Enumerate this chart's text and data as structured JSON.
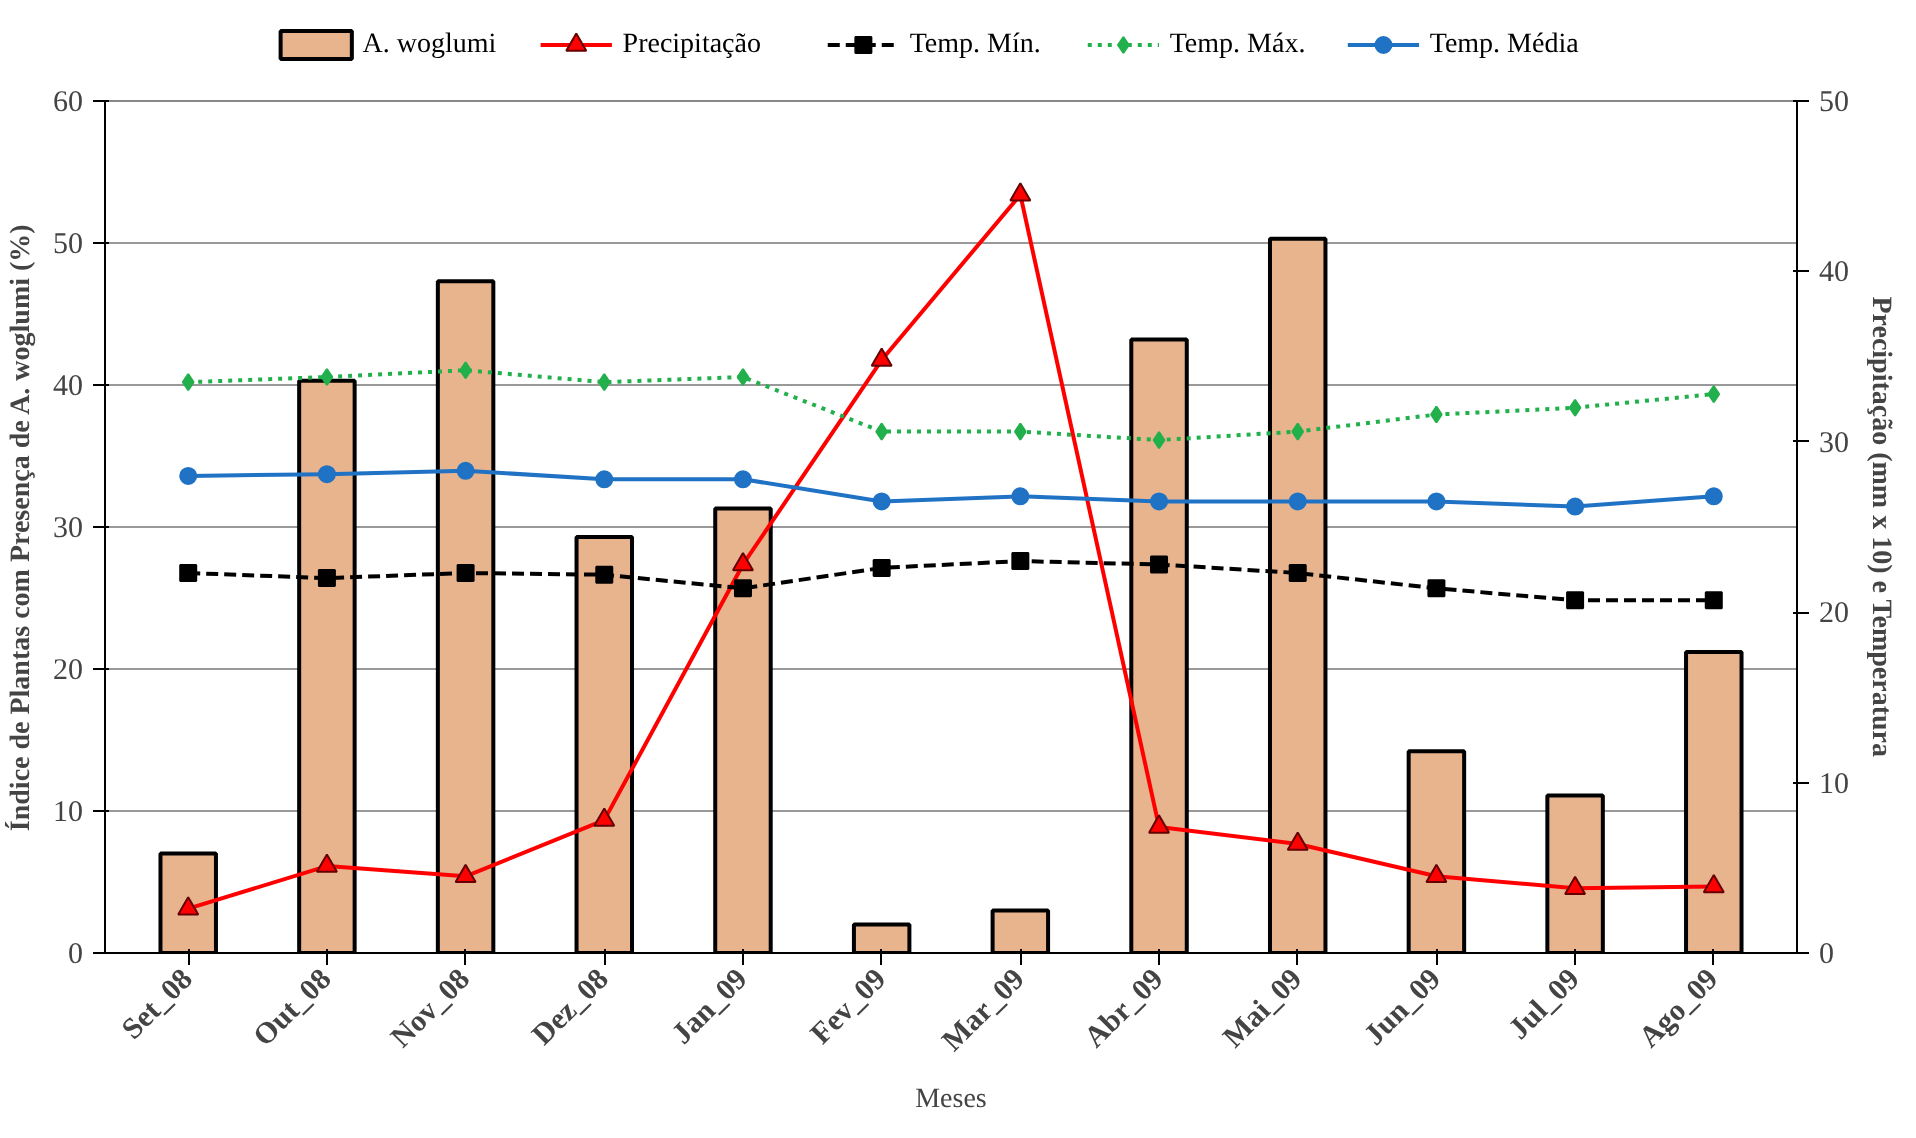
{
  "chart_data": {
    "type": "bar",
    "xlabel": "Meses",
    "ylabel": "Índice de Plantas com Presença de\nA. woglumi (%)",
    "y2label": "Precipitação (mm x 10) e Temperatura",
    "categories": [
      "Set_08",
      "Out_08",
      "Nov_08",
      "Dez_08",
      "Jan_09",
      "Fev_09",
      "Mar_09",
      "Abr_09",
      "Mai_09",
      "Jun_09",
      "Jul_09",
      "Ago_09"
    ],
    "series": [
      {
        "name": "A. woglumi",
        "color": "#e8b48e",
        "values": [
          7,
          40.3,
          47.3,
          29.3,
          31.3,
          2,
          3,
          43.2,
          50.3,
          14.2,
          11.1,
          21.2
        ]
      },
      {
        "name": "Precipitação",
        "type": "line",
        "axis": "y2",
        "color": "#ff0000",
        "marker": "triangle",
        "line_style": "solid",
        "values": [
          2.6,
          5.1,
          4.5,
          7.8,
          22.8,
          34.8,
          44.5,
          7.4,
          6.4,
          4.5,
          3.8,
          3.9
        ]
      },
      {
        "name": "Temp. Mín.",
        "type": "line",
        "axis": "y2",
        "color": "#000000",
        "marker": "square",
        "line_style": "dashed",
        "values": [
          22.3,
          22.0,
          22.3,
          22.2,
          21.4,
          22.6,
          23.0,
          22.8,
          22.3,
          21.4,
          20.7,
          20.7
        ]
      },
      {
        "name": "Temp. Máx.",
        "type": "line",
        "axis": "y2",
        "color": "#22b04c",
        "marker": "diamond",
        "line_style": "dotted",
        "values": [
          33.5,
          33.8,
          34.2,
          33.5,
          33.8,
          30.6,
          30.6,
          30.1,
          30.6,
          31.6,
          32.0,
          32.8
        ]
      },
      {
        "name": "Temp. Média",
        "type": "line",
        "axis": "y2",
        "color": "#1f72c4",
        "marker": "circle",
        "line_style": "solid",
        "values": [
          28.0,
          28.1,
          28.3,
          27.8,
          27.8,
          26.5,
          26.8,
          26.5,
          26.5,
          26.5,
          26.2,
          26.8
        ]
      }
    ],
    "ylim": [
      0,
      60
    ],
    "yticks": [
      0,
      10,
      20,
      30,
      40,
      50,
      60
    ],
    "y2lim": [
      0,
      50
    ],
    "y2ticks": [
      0,
      10,
      20,
      30,
      40,
      50
    ],
    "grid": "y",
    "legend": "top"
  }
}
